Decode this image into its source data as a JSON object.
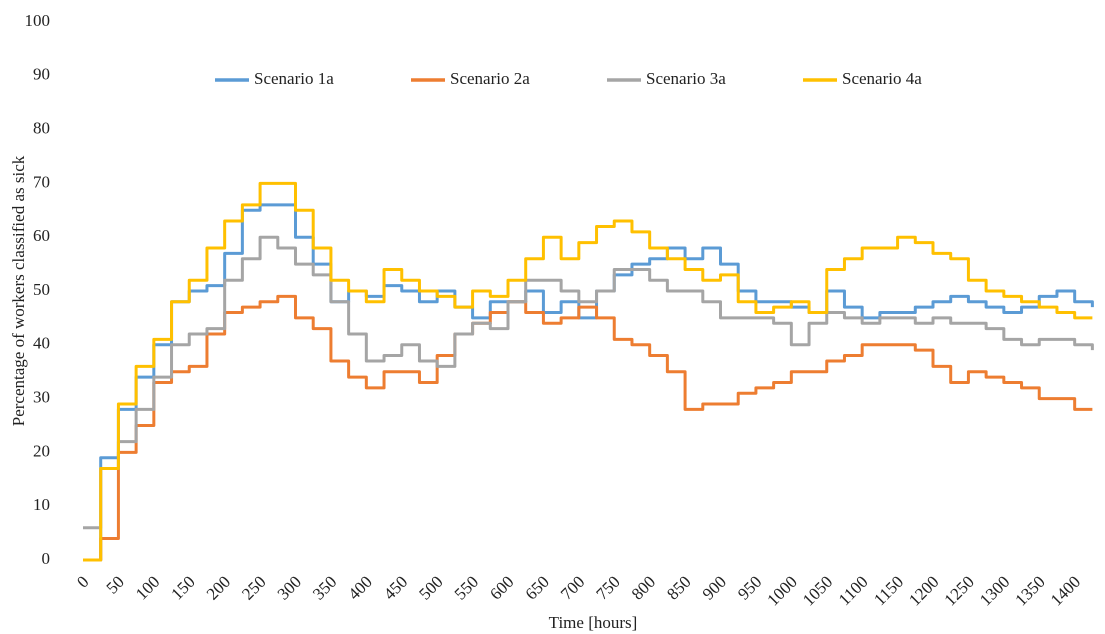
{
  "chart_data": {
    "type": "line",
    "step": true,
    "x_label": "Time [hours]",
    "y_label": "Percentage of workers classified as sick",
    "x": [
      0,
      25,
      50,
      75,
      100,
      125,
      150,
      175,
      200,
      225,
      250,
      275,
      300,
      325,
      350,
      375,
      400,
      425,
      450,
      475,
      500,
      525,
      550,
      575,
      600,
      625,
      650,
      675,
      700,
      725,
      750,
      775,
      800,
      825,
      850,
      875,
      900,
      925,
      950,
      975,
      1000,
      1025,
      1050,
      1075,
      1100,
      1125,
      1150,
      1175,
      1200,
      1225,
      1250,
      1275,
      1300,
      1325,
      1350,
      1375,
      1400,
      1425
    ],
    "series": [
      {
        "name": "Scenario 1a",
        "color": "#5b9bd5",
        "values": [
          0,
          19,
          28,
          34,
          40,
          48,
          50,
          51,
          57,
          65,
          66,
          66,
          60,
          55,
          48,
          50,
          49,
          51,
          50,
          48,
          50,
          47,
          45,
          48,
          48,
          50,
          46,
          48,
          45,
          50,
          53,
          55,
          56,
          58,
          56,
          58,
          55,
          50,
          48,
          48,
          47,
          46,
          50,
          47,
          45,
          46,
          46,
          47,
          48,
          49,
          48,
          47,
          46,
          47,
          49,
          50,
          48,
          47
        ]
      },
      {
        "name": "Scenario 2a",
        "color": "#ed7d31",
        "values": [
          0,
          4,
          20,
          25,
          33,
          35,
          36,
          42,
          46,
          47,
          48,
          49,
          45,
          43,
          37,
          34,
          32,
          35,
          35,
          33,
          38,
          42,
          44,
          46,
          48,
          46,
          44,
          45,
          47,
          45,
          41,
          40,
          38,
          35,
          28,
          29,
          29,
          31,
          32,
          33,
          35,
          35,
          37,
          38,
          40,
          40,
          40,
          39,
          36,
          33,
          35,
          34,
          33,
          32,
          30,
          30,
          28,
          28
        ]
      },
      {
        "name": "Scenario 3a",
        "color": "#a5a5a5",
        "values": [
          6,
          17,
          22,
          28,
          34,
          40,
          42,
          43,
          52,
          56,
          60,
          58,
          55,
          53,
          48,
          42,
          37,
          38,
          40,
          37,
          36,
          42,
          44,
          43,
          48,
          52,
          52,
          50,
          48,
          50,
          54,
          54,
          52,
          50,
          50,
          48,
          45,
          45,
          45,
          44,
          40,
          44,
          46,
          45,
          44,
          45,
          45,
          44,
          45,
          44,
          44,
          43,
          41,
          40,
          41,
          41,
          40,
          39
        ]
      },
      {
        "name": "Scenario 4a",
        "color": "#ffc000",
        "values": [
          0,
          17,
          29,
          36,
          41,
          48,
          52,
          58,
          63,
          66,
          70,
          70,
          65,
          58,
          52,
          50,
          48,
          54,
          52,
          50,
          49,
          47,
          50,
          49,
          52,
          56,
          60,
          56,
          59,
          62,
          63,
          61,
          58,
          56,
          54,
          52,
          53,
          48,
          46,
          47,
          48,
          46,
          54,
          56,
          58,
          58,
          60,
          59,
          57,
          56,
          52,
          50,
          49,
          48,
          47,
          46,
          45,
          45
        ]
      }
    ],
    "xlim": [
      0,
      1440
    ],
    "xticks": [
      0,
      50,
      100,
      150,
      200,
      250,
      300,
      350,
      400,
      450,
      500,
      550,
      600,
      650,
      700,
      750,
      800,
      850,
      900,
      950,
      1000,
      1050,
      1100,
      1150,
      1200,
      1250,
      1300,
      1350,
      1400
    ],
    "ylim": [
      0,
      100
    ],
    "yticks": [
      0,
      10,
      20,
      30,
      40,
      50,
      60,
      70,
      80,
      90,
      100
    ],
    "grid": false,
    "legend": "top"
  }
}
